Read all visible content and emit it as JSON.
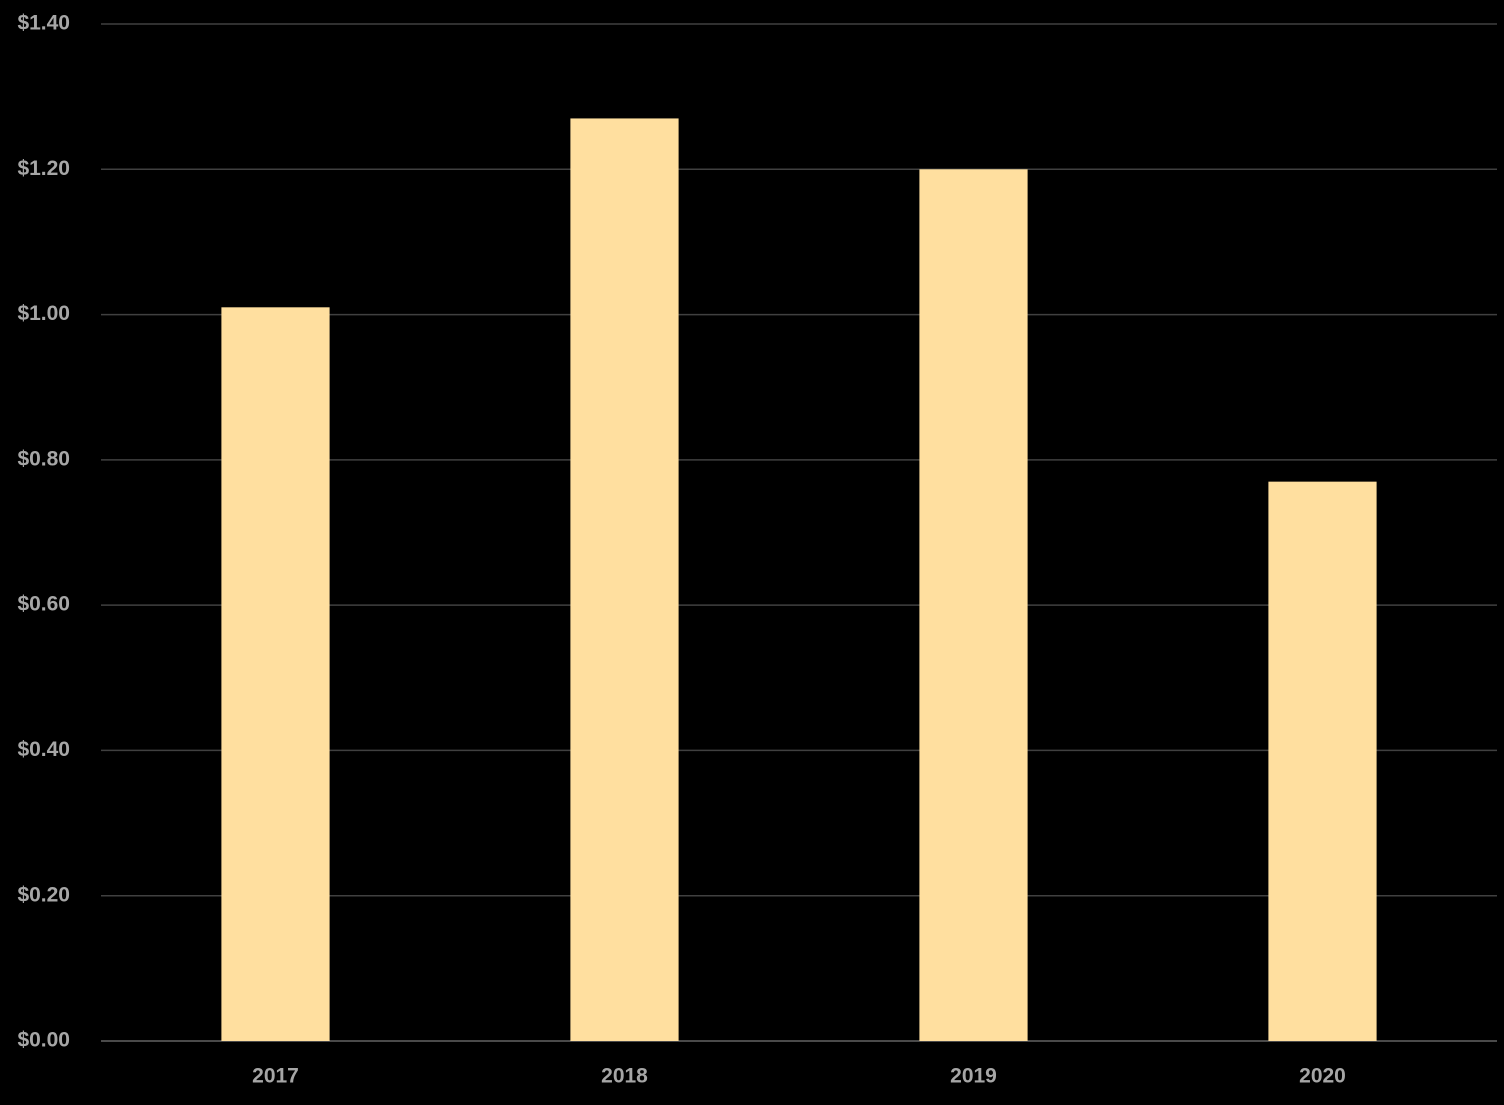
{
  "chart_data": {
    "type": "bar",
    "categories": [
      "2017",
      "2018",
      "2019",
      "2020"
    ],
    "values": [
      1.01,
      1.27,
      1.2,
      0.77
    ],
    "color": "#ffdf9f",
    "ylim": [
      0,
      1.4
    ],
    "yticks": [
      {
        "value": 0,
        "label": "$0.00"
      },
      {
        "value": 0.2,
        "label": "$0.20"
      },
      {
        "value": 0.4,
        "label": "$0.40"
      },
      {
        "value": 0.6,
        "label": "$0.60"
      },
      {
        "value": 0.8,
        "label": "$0.80"
      },
      {
        "value": 1.0,
        "label": "$1.00"
      },
      {
        "value": 1.2,
        "label": "$1.20"
      },
      {
        "value": 1.4,
        "label": "$1.40"
      }
    ],
    "grid": true
  }
}
